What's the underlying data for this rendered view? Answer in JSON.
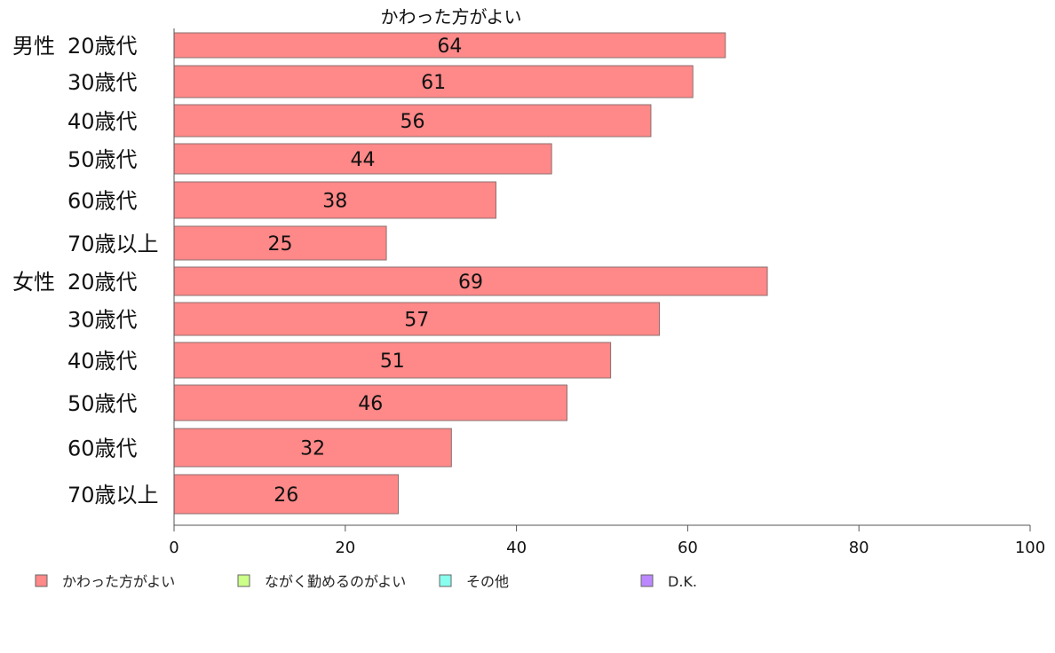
{
  "chart_data": {
    "type": "bar",
    "orientation": "horizontal",
    "title": "かわった方がよい",
    "groups": [
      {
        "label": "男性",
        "start_index": 0
      },
      {
        "label": "女性",
        "start_index": 6
      }
    ],
    "categories": [
      "20歳代",
      "30歳代",
      "40歳代",
      "50歳代",
      "60歳代",
      "70歳以上",
      "20歳代",
      "30歳代",
      "40歳代",
      "50歳代",
      "60歳代",
      "70歳以上"
    ],
    "series": [
      {
        "name": "かわった方がよい",
        "color": "#ff8888",
        "values": [
          64.4,
          60.6,
          55.7,
          44.1,
          37.6,
          24.8,
          69.3,
          56.7,
          51.0,
          45.9,
          32.4,
          26.2
        ]
      }
    ],
    "data_labels": [
      "64",
      "61",
      "56",
      "44",
      "38",
      "25",
      "69",
      "57",
      "51",
      "46",
      "32",
      "26"
    ],
    "xlim": [
      0,
      100
    ],
    "xticks": [
      0,
      20,
      40,
      60,
      80,
      100
    ],
    "grid": false,
    "legend": {
      "placement": "bottom",
      "entries": [
        {
          "label": "かわった方がよい",
          "color": "#ff8888"
        },
        {
          "label": "ながく勤めるのがよい",
          "color": "#ccff88"
        },
        {
          "label": "その他",
          "color": "#88ffee"
        },
        {
          "label": "D.K.",
          "color": "#bb88ff"
        }
      ]
    }
  }
}
